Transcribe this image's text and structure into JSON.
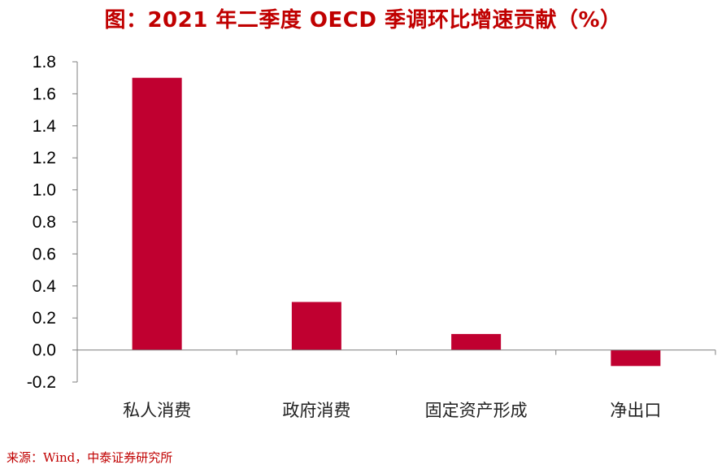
{
  "title": "图：2021 年二季度 OECD 季调环比增速贡献（%）",
  "source": "来源：Wind，中泰证券研究所",
  "colors": {
    "bar": "#c00030",
    "title": "#c00000",
    "axis": "#7f7f7f"
  },
  "chart_data": {
    "type": "bar",
    "title": "图：2021 年二季度 OECD 季调环比增速贡献（%）",
    "categories": [
      "私人消费",
      "政府消费",
      "固定资产形成",
      "净出口"
    ],
    "values": [
      1.7,
      0.3,
      0.1,
      -0.1
    ],
    "ylim": [
      -0.2,
      1.8
    ],
    "yticks": [
      "-0.2",
      "0.0",
      "0.2",
      "0.4",
      "0.6",
      "0.8",
      "1.0",
      "1.2",
      "1.4",
      "1.6",
      "1.8"
    ],
    "xlabel": "",
    "ylabel": "",
    "grid": false,
    "legend": "none"
  }
}
